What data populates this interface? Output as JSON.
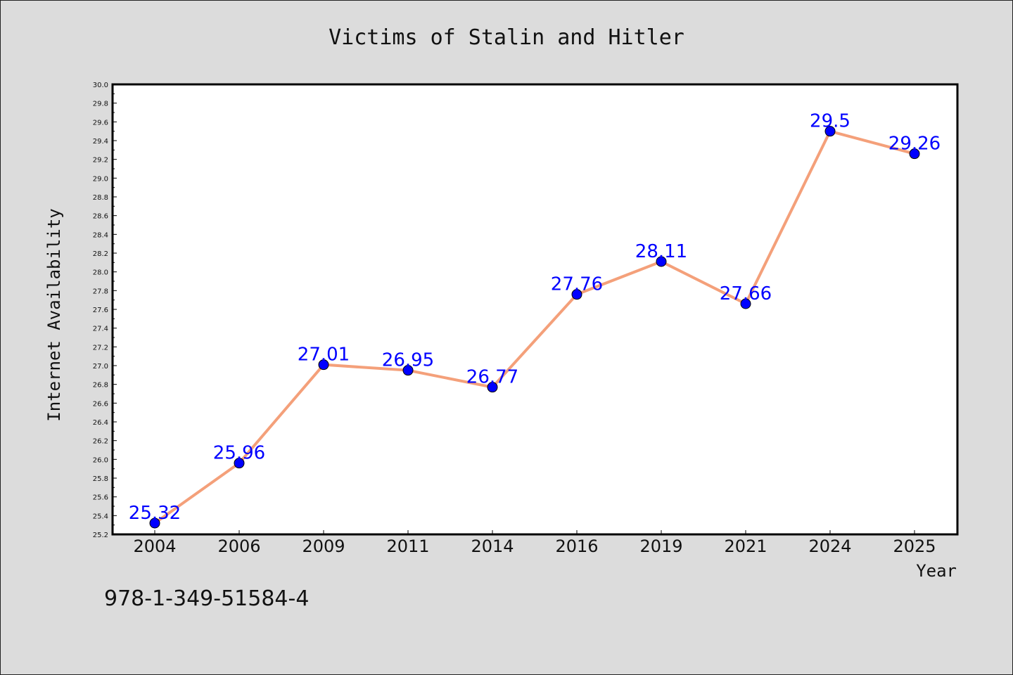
{
  "footer": {
    "isbn": "978-1-349-51584-4"
  },
  "colors": {
    "line": "#f4a07a",
    "marker": "#0000ff",
    "label": "#0000ff",
    "background": "#dcdcdc",
    "plot_bg": "#ffffff"
  },
  "chart_data": {
    "type": "line",
    "title": "Victims of Stalin and Hitler",
    "xlabel": "Year",
    "ylabel": "Internet Availability",
    "categories": [
      "2004",
      "2006",
      "2009",
      "2011",
      "2014",
      "2016",
      "2019",
      "2021",
      "2024",
      "2025"
    ],
    "values": [
      25.32,
      25.96,
      27.01,
      26.95,
      26.77,
      27.76,
      28.11,
      27.66,
      29.5,
      29.26
    ],
    "value_labels": [
      "25.32",
      "25.96",
      "27.01",
      "26.95",
      "26.77",
      "27.76",
      "28.11",
      "27.66",
      "29.5",
      "29.26"
    ],
    "ylim": [
      25.2,
      30.0
    ],
    "yticks": [
      "25.2",
      "25.4",
      "25.6",
      "25.8",
      "26.0",
      "26.2",
      "26.4",
      "26.6",
      "26.8",
      "27.0",
      "27.2",
      "27.4",
      "27.6",
      "27.8",
      "28.0",
      "28.2",
      "28.4",
      "28.6",
      "28.8",
      "29.0",
      "29.2",
      "29.4",
      "29.6",
      "29.8",
      "30.0"
    ],
    "grid": false,
    "legend": "none"
  }
}
